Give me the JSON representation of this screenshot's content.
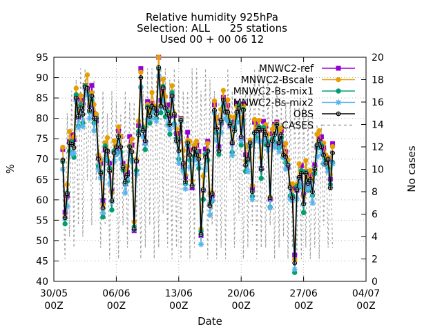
{
  "chart_data": {
    "type": "line",
    "title_lines": [
      "Relative humidity 925hPa",
      "Selection: ALL      25 stations",
      "Used 00 + 00 06 12"
    ],
    "xlabel": "Date",
    "ylabel": "%",
    "y2label": "No cases",
    "x_ticks": [
      {
        "label1": "30/05",
        "label2": "00Z",
        "day": 0
      },
      {
        "label1": "06/06",
        "label2": "00Z",
        "day": 7
      },
      {
        "label1": "13/06",
        "label2": "00Z",
        "day": 14
      },
      {
        "label1": "20/06",
        "label2": "00Z",
        "day": 21
      },
      {
        "label1": "27/06",
        "label2": "00Z",
        "day": 28
      },
      {
        "label1": "04/07",
        "label2": "00Z",
        "day": 35
      }
    ],
    "xlim_days": [
      0,
      35
    ],
    "ylim": [
      40,
      95
    ],
    "y_ticks": [
      40,
      45,
      50,
      55,
      60,
      65,
      70,
      75,
      80,
      85,
      90,
      95
    ],
    "y2lim": [
      0,
      20
    ],
    "y2_ticks": [
      0,
      2,
      4,
      6,
      8,
      10,
      12,
      14,
      16,
      18,
      20
    ],
    "legend_position": "top-right",
    "obs_series": "OBS",
    "series": [
      {
        "name": "MNWC2-ref",
        "color": "#9400d3",
        "marker": "plus-square",
        "dashed": false,
        "offset": 1.0
      },
      {
        "name": "MNWC2-Bscale",
        "color": "#e69f00",
        "marker": "circle",
        "dashed": false,
        "offset": 1.8
      },
      {
        "name": "MNWC2-Bs-mix1",
        "color": "#009e73",
        "marker": "circle",
        "dashed": false,
        "offset": -0.8
      },
      {
        "name": "MNWC2-Bs-mix2",
        "color": "#56b4e9",
        "marker": "star",
        "dashed": false,
        "offset": -1.5
      },
      {
        "name": "OBS",
        "color": "#000000",
        "marker": "circle-plus",
        "dashed": false,
        "offset": 0
      },
      {
        "name": "CASES",
        "color": "#a0a0a0",
        "marker": "none",
        "dashed": true,
        "axis": "y2"
      }
    ],
    "obs_values": [
      [
        1.0,
        69.8
      ],
      [
        1.25,
        55.6
      ],
      [
        1.5,
        61.5
      ],
      [
        1.75,
        74.0
      ],
      [
        2.0,
        73.6
      ],
      [
        2.25,
        72.8
      ],
      [
        2.5,
        85.0
      ],
      [
        2.75,
        80.5
      ],
      [
        3.0,
        82.6
      ],
      [
        3.25,
        81.0
      ],
      [
        3.5,
        87.7
      ],
      [
        3.75,
        87.4
      ],
      [
        4.0,
        82.0
      ],
      [
        4.25,
        85.5
      ],
      [
        4.5,
        80.0
      ],
      [
        4.75,
        80.0
      ],
      [
        5.0,
        70.0
      ],
      [
        5.25,
        66.5
      ],
      [
        5.5,
        58.0
      ],
      [
        5.75,
        72.5
      ],
      [
        6.0,
        72.0
      ],
      [
        6.25,
        67.0
      ],
      [
        6.5,
        59.8
      ],
      [
        6.75,
        71.5
      ],
      [
        7.0,
        73.0
      ],
      [
        7.25,
        75.5
      ],
      [
        7.5,
        73.0
      ],
      [
        7.75,
        68.0
      ],
      [
        8.0,
        64.5
      ],
      [
        8.25,
        66.0
      ],
      [
        8.5,
        73.0
      ],
      [
        8.75,
        71.8
      ],
      [
        9.0,
        52.8
      ],
      [
        9.25,
        69.5
      ],
      [
        9.5,
        76.0
      ],
      [
        9.75,
        90.0
      ],
      [
        10.0,
        77.0
      ],
      [
        10.25,
        74.5
      ],
      [
        10.5,
        82.5
      ],
      [
        10.75,
        80.5
      ],
      [
        11.0,
        83.0
      ],
      [
        11.25,
        82.5
      ],
      [
        11.5,
        81.0
      ],
      [
        11.75,
        92.5
      ],
      [
        12.0,
        83.0
      ],
      [
        12.25,
        87.5
      ],
      [
        12.5,
        82.5
      ],
      [
        12.75,
        81.0
      ],
      [
        13.0,
        78.5
      ],
      [
        13.25,
        85.5
      ],
      [
        13.5,
        81.0
      ],
      [
        13.75,
        74.5
      ],
      [
        14.0,
        72.0
      ],
      [
        14.25,
        79.5
      ],
      [
        14.5,
        69.0
      ],
      [
        14.75,
        64.5
      ],
      [
        15.0,
        74.0
      ],
      [
        15.25,
        71.0
      ],
      [
        15.5,
        63.5
      ],
      [
        15.75,
        72.5
      ],
      [
        16.0,
        71.0
      ],
      [
        16.25,
        70.0
      ],
      [
        16.5,
        51.5
      ],
      [
        16.75,
        62.5
      ],
      [
        17.0,
        70.5
      ],
      [
        17.25,
        72.0
      ],
      [
        17.5,
        58.5
      ],
      [
        17.75,
        61.5
      ],
      [
        18.0,
        82.0
      ],
      [
        18.25,
        77.5
      ],
      [
        18.5,
        72.0
      ],
      [
        18.75,
        79.5
      ],
      [
        19.0,
        84.5
      ],
      [
        19.25,
        81.5
      ],
      [
        19.5,
        81.5
      ],
      [
        19.75,
        78.5
      ],
      [
        20.0,
        74.0
      ],
      [
        20.25,
        77.0
      ],
      [
        20.5,
        81.5
      ],
      [
        20.75,
        82.5
      ],
      [
        21.0,
        75.5
      ],
      [
        21.25,
        82.0
      ],
      [
        21.5,
        68.5
      ],
      [
        21.75,
        70.0
      ],
      [
        22.0,
        74.0
      ],
      [
        22.25,
        62.0
      ],
      [
        22.5,
        76.5
      ],
      [
        22.75,
        77.0
      ],
      [
        23.0,
        77.5
      ],
      [
        23.25,
        67.5
      ],
      [
        23.5,
        77.0
      ],
      [
        23.75,
        76.0
      ],
      [
        24.0,
        73.5
      ],
      [
        24.25,
        60.5
      ],
      [
        24.5,
        74.5
      ],
      [
        24.75,
        76.0
      ],
      [
        25.0,
        78.5
      ],
      [
        25.25,
        74.0
      ],
      [
        25.5,
        76.0
      ],
      [
        25.75,
        71.0
      ],
      [
        26.0,
        70.5
      ],
      [
        26.25,
        68.5
      ],
      [
        26.5,
        63.0
      ],
      [
        26.75,
        60.5
      ],
      [
        27.0,
        44.5
      ],
      [
        27.25,
        62.5
      ],
      [
        27.5,
        65.5
      ],
      [
        27.75,
        66.5
      ],
      [
        28.0,
        59.0
      ],
      [
        28.25,
        66.5
      ],
      [
        28.5,
        64.0
      ],
      [
        28.75,
        65.0
      ],
      [
        29.0,
        62.0
      ],
      [
        29.25,
        67.5
      ],
      [
        29.5,
        73.5
      ],
      [
        29.75,
        74.5
      ],
      [
        30.0,
        73.0
      ],
      [
        30.25,
        71.0
      ],
      [
        30.5,
        69.0
      ],
      [
        30.75,
        70.0
      ],
      [
        31.0,
        63.0
      ],
      [
        31.25,
        71.5
      ]
    ],
    "cases_values": [
      [
        1.0,
        9
      ],
      [
        1.25,
        2
      ],
      [
        1.5,
        15
      ],
      [
        1.75,
        4
      ],
      [
        2.0,
        17
      ],
      [
        2.25,
        3
      ],
      [
        2.5,
        18
      ],
      [
        2.75,
        5
      ],
      [
        3.0,
        19
      ],
      [
        3.25,
        4
      ],
      [
        3.5,
        19
      ],
      [
        3.75,
        9
      ],
      [
        4.0,
        17
      ],
      [
        4.25,
        5
      ],
      [
        4.5,
        18
      ],
      [
        4.75,
        9
      ],
      [
        5.0,
        15
      ],
      [
        5.25,
        3
      ],
      [
        5.5,
        17
      ],
      [
        5.75,
        5
      ],
      [
        6.0,
        15
      ],
      [
        6.25,
        2
      ],
      [
        6.5,
        17
      ],
      [
        6.75,
        7
      ],
      [
        7.0,
        16
      ],
      [
        7.25,
        2
      ],
      [
        7.5,
        15
      ],
      [
        7.75,
        5
      ],
      [
        8.0,
        17
      ],
      [
        8.25,
        3
      ],
      [
        8.5,
        16
      ],
      [
        8.75,
        8
      ],
      [
        9.0,
        16
      ],
      [
        9.25,
        5
      ],
      [
        9.5,
        15
      ],
      [
        9.75,
        2
      ],
      [
        10.0,
        17
      ],
      [
        10.25,
        3
      ],
      [
        10.5,
        19
      ],
      [
        10.75,
        5
      ],
      [
        11.0,
        19
      ],
      [
        11.25,
        2
      ],
      [
        11.5,
        18
      ],
      [
        11.75,
        3
      ],
      [
        12.0,
        19
      ],
      [
        12.25,
        6
      ],
      [
        12.5,
        19
      ],
      [
        12.75,
        3
      ],
      [
        13.0,
        18
      ],
      [
        13.25,
        2
      ],
      [
        13.5,
        19
      ],
      [
        13.75,
        3
      ],
      [
        14.0,
        18
      ],
      [
        14.25,
        2
      ],
      [
        14.5,
        17
      ],
      [
        14.75,
        9
      ],
      [
        15.0,
        17
      ],
      [
        15.25,
        2
      ],
      [
        15.5,
        19
      ],
      [
        15.75,
        3
      ],
      [
        16.0,
        19
      ],
      [
        16.25,
        9
      ],
      [
        16.5,
        17
      ],
      [
        16.75,
        6
      ],
      [
        17.0,
        19
      ],
      [
        17.25,
        2
      ],
      [
        17.5,
        18
      ],
      [
        17.75,
        5
      ],
      [
        18.0,
        17
      ],
      [
        18.25,
        2
      ],
      [
        18.5,
        16
      ],
      [
        18.75,
        3
      ],
      [
        19.0,
        17
      ],
      [
        19.25,
        2
      ],
      [
        19.5,
        19
      ],
      [
        19.75,
        9
      ],
      [
        20.0,
        17
      ],
      [
        20.25,
        3
      ],
      [
        20.5,
        15
      ],
      [
        20.75,
        6
      ],
      [
        21.0,
        16
      ],
      [
        21.25,
        2
      ],
      [
        21.5,
        17
      ],
      [
        21.75,
        3
      ],
      [
        22.0,
        17
      ],
      [
        22.25,
        5
      ],
      [
        22.5,
        19
      ],
      [
        22.75,
        2
      ],
      [
        23.0,
        19
      ],
      [
        23.25,
        3
      ],
      [
        23.5,
        18
      ],
      [
        23.75,
        3
      ],
      [
        24.0,
        18
      ],
      [
        24.25,
        5
      ],
      [
        24.5,
        16
      ],
      [
        24.75,
        2
      ],
      [
        25.0,
        18
      ],
      [
        25.25,
        3
      ],
      [
        25.5,
        16
      ],
      [
        25.75,
        4
      ],
      [
        26.0,
        16
      ],
      [
        26.25,
        2
      ],
      [
        26.5,
        16
      ],
      [
        26.75,
        3
      ],
      [
        27.0,
        16
      ],
      [
        27.25,
        2
      ],
      [
        27.5,
        16
      ],
      [
        27.75,
        2
      ],
      [
        28.0,
        16
      ],
      [
        28.25,
        3
      ],
      [
        28.5,
        15
      ],
      [
        28.75,
        2
      ],
      [
        29.0,
        15
      ],
      [
        29.25,
        3
      ],
      [
        29.5,
        14
      ],
      [
        29.75,
        2
      ],
      [
        30.0,
        14
      ],
      [
        30.25,
        5
      ],
      [
        30.5,
        12
      ],
      [
        30.75,
        3
      ],
      [
        31.0,
        12
      ],
      [
        31.25,
        3
      ]
    ]
  }
}
